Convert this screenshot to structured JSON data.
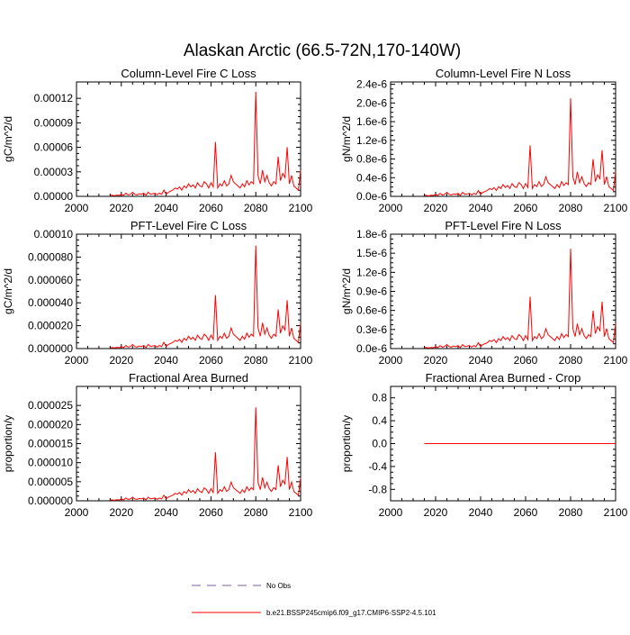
{
  "title": "Alaskan Arctic (66.5-72N,170-140W)",
  "legend": [
    {
      "label": "No Obs",
      "color": "#7b5fa0",
      "dash": true
    },
    {
      "label": "b.e21.BSSP245cmip6.f09_g17.CMIP6-SSP2-4.5.101",
      "color": "#ff0000",
      "dash": false
    }
  ],
  "colors": {
    "series": "#ff0000",
    "axis": "#000000"
  },
  "chart_data": [
    {
      "type": "line",
      "title": "Column-Level Fire C Loss",
      "ylabel": "gC/m^2/d",
      "xlim": [
        2000,
        2100
      ],
      "ylim": [
        0,
        0.00014
      ],
      "xticks": [
        "2000",
        "2020",
        "2040",
        "2060",
        "2080",
        "2100"
      ],
      "yticks": [
        {
          "v": 0,
          "label": "0.00000"
        },
        {
          "v": 3e-05,
          "label": "0.00003"
        },
        {
          "v": 6e-05,
          "label": "0.00006"
        },
        {
          "v": 9e-05,
          "label": "0.00009"
        },
        {
          "v": 0.00012,
          "label": "0.00012"
        }
      ],
      "shape_series": "fire",
      "peak": 0.000128
    },
    {
      "type": "line",
      "title": "Column-Level Fire N Loss",
      "ylabel": "gN/m^2/d",
      "xlim": [
        2000,
        2100
      ],
      "ylim": [
        0,
        2.45e-06
      ],
      "xticks": [
        "2000",
        "2020",
        "2040",
        "2060",
        "2080",
        "2100"
      ],
      "yticks": [
        {
          "v": 0,
          "label": "0.0e-6"
        },
        {
          "v": 4e-07,
          "label": "0.4e-6"
        },
        {
          "v": 8e-07,
          "label": "0.8e-6"
        },
        {
          "v": 1.2e-06,
          "label": "1.2e-6"
        },
        {
          "v": 1.6e-06,
          "label": "1.6e-6"
        },
        {
          "v": 2e-06,
          "label": "2.0e-6"
        },
        {
          "v": 2.4e-06,
          "label": "2.4e-6"
        }
      ],
      "shape_series": "fire",
      "peak": 2.1e-06
    },
    {
      "type": "line",
      "title": "PFT-Level Fire C Loss",
      "ylabel": "gC/m^2/d",
      "xlim": [
        2000,
        2100
      ],
      "ylim": [
        0,
        0.0001
      ],
      "xticks": [
        "2000",
        "2020",
        "2040",
        "2060",
        "2080",
        "2100"
      ],
      "yticks": [
        {
          "v": 0,
          "label": "0.000000"
        },
        {
          "v": 2e-05,
          "label": "0.000020"
        },
        {
          "v": 4e-05,
          "label": "0.000040"
        },
        {
          "v": 6e-05,
          "label": "0.000060"
        },
        {
          "v": 8e-05,
          "label": "0.000080"
        },
        {
          "v": 0.0001,
          "label": "0.00010"
        }
      ],
      "shape_series": "fire",
      "peak": 9e-05
    },
    {
      "type": "line",
      "title": "PFT-Level Fire N Loss",
      "ylabel": "gN/m^2/d",
      "xlim": [
        2000,
        2100
      ],
      "ylim": [
        0,
        1.8e-06
      ],
      "xticks": [
        "2000",
        "2020",
        "2040",
        "2060",
        "2080",
        "2100"
      ],
      "yticks": [
        {
          "v": 0,
          "label": "0.0e-6"
        },
        {
          "v": 3e-07,
          "label": "0.3e-6"
        },
        {
          "v": 6e-07,
          "label": "0.6e-6"
        },
        {
          "v": 9e-07,
          "label": "0.9e-6"
        },
        {
          "v": 1.2e-06,
          "label": "1.2e-6"
        },
        {
          "v": 1.5e-06,
          "label": "1.5e-6"
        },
        {
          "v": 1.8e-06,
          "label": "1.8e-6"
        }
      ],
      "shape_series": "fire",
      "peak": 1.57e-06
    },
    {
      "type": "line",
      "title": "Fractional Area Burned",
      "ylabel": "proportion/y",
      "xlim": [
        2000,
        2100
      ],
      "ylim": [
        0,
        3e-05
      ],
      "xticks": [
        "2000",
        "2020",
        "2040",
        "2060",
        "2080",
        "2100"
      ],
      "yticks": [
        {
          "v": 0,
          "label": "0.000000"
        },
        {
          "v": 5e-06,
          "label": "0.000005"
        },
        {
          "v": 1e-05,
          "label": "0.000010"
        },
        {
          "v": 1.5e-05,
          "label": "0.000015"
        },
        {
          "v": 2e-05,
          "label": "0.000020"
        },
        {
          "v": 2.5e-05,
          "label": "0.000025"
        }
      ],
      "shape_series": "fire",
      "peak": 2.45e-05
    },
    {
      "type": "line",
      "title": "Fractional Area Burned - Crop",
      "ylabel": "proportion/y",
      "xlim": [
        2000,
        2100
      ],
      "ylim": [
        -1,
        1
      ],
      "xticks": [
        "2000",
        "2020",
        "2040",
        "2060",
        "2080",
        "2100"
      ],
      "yticks": [
        {
          "v": -0.8,
          "label": "-0.8"
        },
        {
          "v": -0.4,
          "label": "-0.4"
        },
        {
          "v": 0,
          "label": "0.0"
        },
        {
          "v": 0.4,
          "label": "0.4"
        },
        {
          "v": 0.8,
          "label": "0.8"
        }
      ],
      "shape_series": "flat",
      "peak": 0
    }
  ],
  "fire_shape": {
    "years": [
      2015,
      2016,
      2017,
      2018,
      2019,
      2020,
      2021,
      2022,
      2023,
      2024,
      2025,
      2026,
      2027,
      2028,
      2029,
      2030,
      2031,
      2032,
      2033,
      2034,
      2035,
      2036,
      2037,
      2038,
      2039,
      2040,
      2041,
      2042,
      2043,
      2044,
      2045,
      2046,
      2047,
      2048,
      2049,
      2050,
      2051,
      2052,
      2053,
      2054,
      2055,
      2056,
      2057,
      2058,
      2059,
      2060,
      2061,
      2062,
      2063,
      2064,
      2065,
      2066,
      2067,
      2068,
      2069,
      2070,
      2071,
      2072,
      2073,
      2074,
      2075,
      2076,
      2077,
      2078,
      2079,
      2080,
      2081,
      2082,
      2083,
      2084,
      2085,
      2086,
      2087,
      2088,
      2089,
      2090,
      2091,
      2092,
      2093,
      2094,
      2095,
      2096,
      2097,
      2098,
      2099,
      2100
    ],
    "relative": [
      0.01,
      0.01,
      0.005,
      0.012,
      0.008,
      0.02,
      0.01,
      0.03,
      0.015,
      0.02,
      0.04,
      0.02,
      0.015,
      0.025,
      0.02,
      0.03,
      0.01,
      0.04,
      0.02,
      0.025,
      0.03,
      0.015,
      0.03,
      0.02,
      0.06,
      0.02,
      0.04,
      0.05,
      0.06,
      0.08,
      0.07,
      0.09,
      0.06,
      0.1,
      0.08,
      0.12,
      0.09,
      0.11,
      0.08,
      0.13,
      0.1,
      0.09,
      0.14,
      0.12,
      0.08,
      0.13,
      0.09,
      0.52,
      0.08,
      0.12,
      0.1,
      0.15,
      0.1,
      0.12,
      0.2,
      0.14,
      0.12,
      0.1,
      0.08,
      0.12,
      0.09,
      0.15,
      0.11,
      0.14,
      0.12,
      1.0,
      0.2,
      0.12,
      0.25,
      0.14,
      0.2,
      0.13,
      0.1,
      0.14,
      0.12,
      0.38,
      0.15,
      0.22,
      0.18,
      0.47,
      0.12,
      0.2,
      0.1,
      0.08,
      0.06,
      0.25
    ]
  }
}
